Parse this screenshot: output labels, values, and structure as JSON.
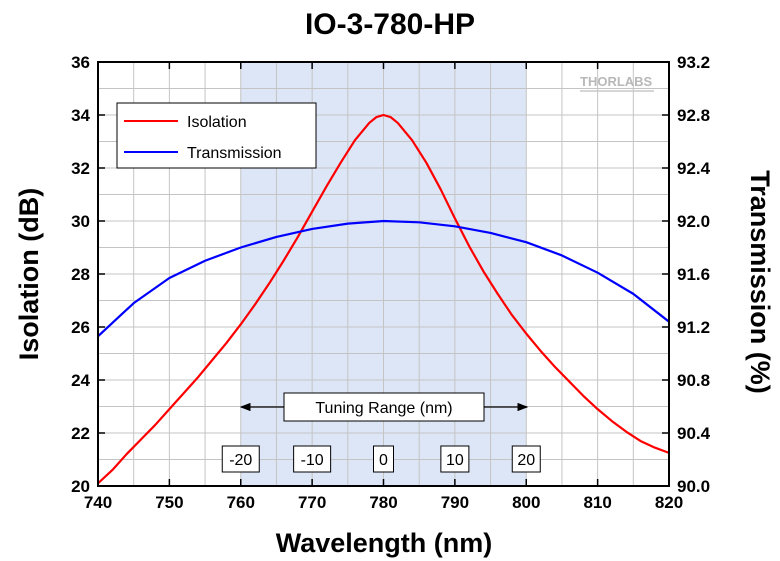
{
  "chart_data": {
    "type": "line",
    "title": "IO-3-780-HP",
    "xlabel": "Wavelength (nm)",
    "ylabel_left": "Isolation (dB)",
    "ylabel_right": "Transmission (%)",
    "xlim": [
      740,
      820
    ],
    "ylim_left": [
      20,
      36
    ],
    "ylim_right": [
      90.0,
      93.2
    ],
    "x_ticks": [
      "740",
      "750",
      "760",
      "770",
      "780",
      "790",
      "800",
      "810",
      "820"
    ],
    "y_left_ticks": [
      "20",
      "22",
      "24",
      "26",
      "28",
      "30",
      "32",
      "34",
      "36"
    ],
    "y_right_ticks": [
      "90.0",
      "90.4",
      "90.8",
      "91.2",
      "91.6",
      "92.0",
      "92.4",
      "92.8",
      "93.2"
    ],
    "grid": true,
    "legend_position": "top-left",
    "shaded_region": {
      "x_start": 760,
      "x_end": 800,
      "color": "#dce6f7"
    },
    "series": [
      {
        "name": "Isolation",
        "axis": "left",
        "color": "#ff0000",
        "x": [
          740,
          742,
          744,
          746,
          748,
          750,
          752,
          754,
          756,
          758,
          760,
          762,
          764,
          766,
          768,
          770,
          772,
          774,
          776,
          778,
          779,
          780,
          781,
          782,
          784,
          786,
          788,
          790,
          792,
          794,
          796,
          798,
          800,
          802,
          804,
          806,
          808,
          810,
          812,
          814,
          816,
          818,
          820
        ],
        "y": [
          20.1,
          20.6,
          21.2,
          21.75,
          22.3,
          22.9,
          23.5,
          24.1,
          24.75,
          25.4,
          26.1,
          26.85,
          27.65,
          28.5,
          29.4,
          30.35,
          31.3,
          32.2,
          33.05,
          33.7,
          33.92,
          34.0,
          33.92,
          33.7,
          33.05,
          32.2,
          31.2,
          30.1,
          29.05,
          28.1,
          27.25,
          26.45,
          25.75,
          25.1,
          24.5,
          23.95,
          23.4,
          22.9,
          22.45,
          22.05,
          21.7,
          21.45,
          21.25
        ]
      },
      {
        "name": "Transmission",
        "axis": "right",
        "color": "#0000ff",
        "x": [
          740,
          745,
          750,
          755,
          760,
          765,
          770,
          775,
          780,
          785,
          790,
          795,
          800,
          805,
          810,
          815,
          820
        ],
        "y": [
          91.13,
          91.38,
          91.57,
          91.7,
          91.8,
          91.88,
          91.94,
          91.98,
          92.0,
          91.99,
          91.96,
          91.91,
          91.84,
          91.74,
          91.61,
          91.45,
          91.24
        ]
      }
    ],
    "annotations": {
      "range_label": "Tuning Range (nm)",
      "offset_labels": [
        {
          "label": "-20",
          "x": 760
        },
        {
          "label": "-10",
          "x": 770
        },
        {
          "label": "0",
          "x": 780
        },
        {
          "label": "10",
          "x": 790
        },
        {
          "label": "20",
          "x": 800
        }
      ]
    },
    "logo": "THORLABS"
  }
}
